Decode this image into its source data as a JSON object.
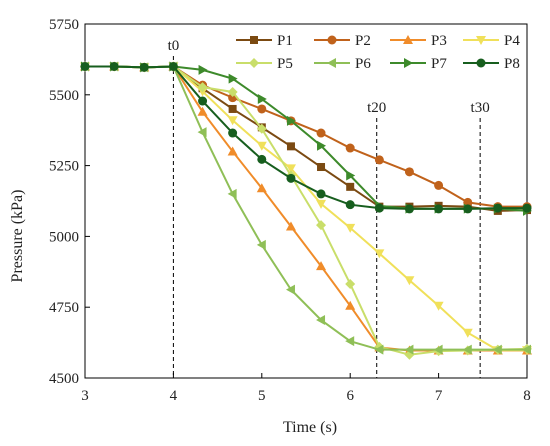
{
  "chart_data": {
    "type": "line",
    "title": "",
    "xlabel": "Time (s)",
    "ylabel": "Pressure (kPa)",
    "xlim": [
      3,
      8
    ],
    "ylim": [
      4500,
      5750
    ],
    "xticks": [
      3,
      4,
      5,
      6,
      7,
      8
    ],
    "yticks": [
      4500,
      4750,
      5000,
      5250,
      5500,
      5750
    ],
    "grid": false,
    "legend_position": "top-right",
    "x": [
      3.0,
      3.33,
      3.67,
      4.0,
      4.33,
      4.67,
      5.0,
      5.33,
      5.67,
      6.0,
      6.33,
      6.67,
      7.0,
      7.33,
      7.67,
      8.0
    ],
    "series": [
      {
        "name": "P1",
        "color": "#7b4a12",
        "marker": "square",
        "values": [
          5600,
          5600,
          5597,
          5600,
          5523,
          5450,
          5385,
          5318,
          5245,
          5175,
          5105,
          5105,
          5108,
          5105,
          5090,
          5093
        ]
      },
      {
        "name": "P2",
        "color": "#c0621b",
        "marker": "circle",
        "values": [
          5600,
          5600,
          5597,
          5600,
          5534,
          5490,
          5450,
          5408,
          5365,
          5312,
          5270,
          5228,
          5180,
          5120,
          5105,
          5105
        ]
      },
      {
        "name": "P3",
        "color": "#f08c2a",
        "marker": "triangle",
        "values": [
          5600,
          5600,
          5597,
          5600,
          5440,
          5300,
          5170,
          5035,
          4895,
          4755,
          4608,
          4597,
          4597,
          4597,
          4597,
          4597
        ]
      },
      {
        "name": "P4",
        "color": "#f0e05a",
        "marker": "triangle-down",
        "values": [
          5600,
          5600,
          5597,
          5600,
          5512,
          5410,
          5320,
          5240,
          5115,
          5030,
          4940,
          4845,
          4755,
          4660,
          4598,
          4598
        ]
      },
      {
        "name": "P5",
        "color": "#c9de6a",
        "marker": "diamond",
        "values": [
          5600,
          5600,
          5597,
          5600,
          5527,
          5510,
          5380,
          5215,
          5040,
          4832,
          4610,
          4582,
          4595,
          4597,
          4600,
          4603
        ]
      },
      {
        "name": "P6",
        "color": "#8fbf57",
        "marker": "triangle-left",
        "values": [
          5600,
          5600,
          5597,
          5600,
          5368,
          5150,
          4970,
          4812,
          4705,
          4630,
          4600,
          4600,
          4600,
          4600,
          4600,
          4600
        ]
      },
      {
        "name": "P7",
        "color": "#3d8a2b",
        "marker": "triangle-right",
        "values": [
          5600,
          5600,
          5597,
          5600,
          5588,
          5557,
          5485,
          5408,
          5320,
          5215,
          5108,
          5098,
          5098,
          5098,
          5098,
          5090
        ]
      },
      {
        "name": "P8",
        "color": "#175e1e",
        "marker": "circle",
        "values": [
          5600,
          5600,
          5597,
          5600,
          5478,
          5365,
          5272,
          5205,
          5150,
          5112,
          5100,
          5097,
          5097,
          5097,
          5100,
          5100
        ]
      }
    ],
    "annotations": [
      {
        "label": "t0",
        "x": 4.0
      },
      {
        "label": "t20",
        "x": 6.3
      },
      {
        "label": "t30",
        "x": 7.47
      }
    ]
  }
}
